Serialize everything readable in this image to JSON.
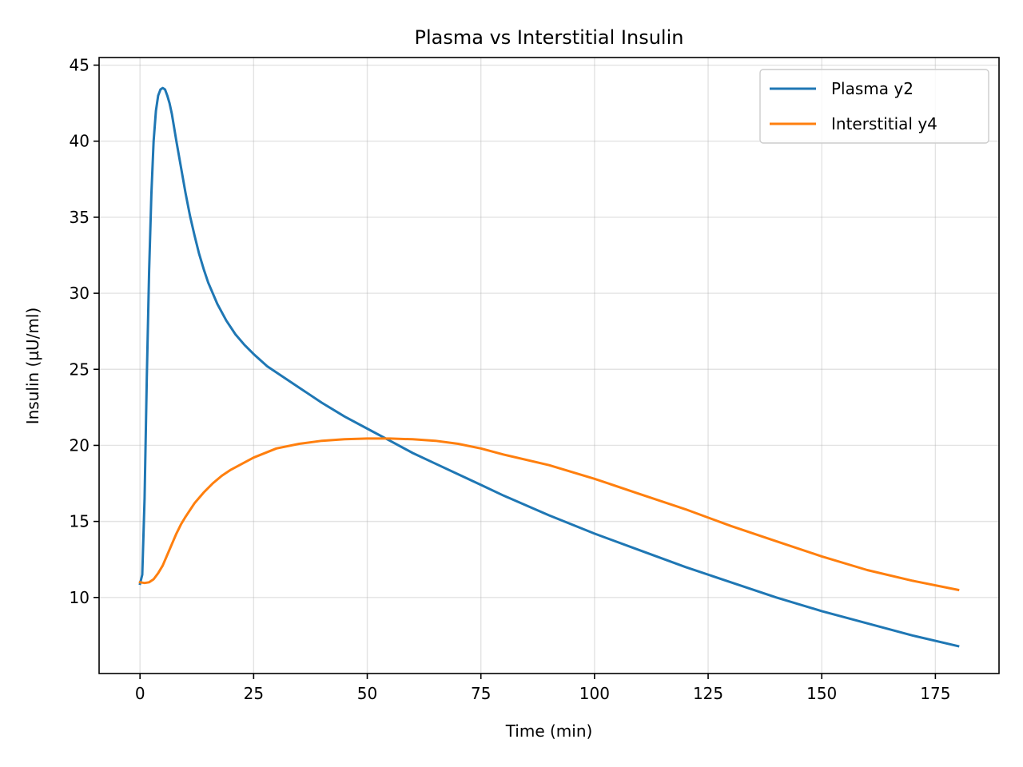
{
  "chart_data": {
    "type": "line",
    "title": "Plasma vs Interstitial Insulin",
    "xlabel": "Time (min)",
    "ylabel": "Insulin (µU/ml)",
    "xlim": [
      -9,
      189
    ],
    "ylim": [
      5,
      45.5
    ],
    "xticks": [
      0,
      25,
      50,
      75,
      100,
      125,
      150,
      175
    ],
    "yticks": [
      10,
      15,
      20,
      25,
      30,
      35,
      40,
      45
    ],
    "grid": true,
    "legend_position": "top-right",
    "series": [
      {
        "name": "Plasma y2",
        "color": "#1f77b4",
        "x": [
          0,
          0.5,
          1,
          1.5,
          2,
          2.5,
          3,
          3.5,
          4,
          4.5,
          5,
          5.5,
          6,
          6.5,
          7,
          8,
          9,
          10,
          11,
          12,
          13,
          14,
          15,
          17,
          19,
          21,
          23,
          25,
          28,
          30,
          35,
          40,
          45,
          50,
          55,
          60,
          65,
          70,
          75,
          80,
          90,
          100,
          110,
          120,
          130,
          140,
          150,
          160,
          170,
          180
        ],
        "y": [
          10.9,
          11.5,
          16.5,
          24.5,
          31.5,
          36.5,
          40.0,
          42.0,
          43.0,
          43.4,
          43.5,
          43.4,
          43.0,
          42.5,
          41.8,
          40.0,
          38.3,
          36.6,
          35.1,
          33.8,
          32.6,
          31.6,
          30.7,
          29.3,
          28.2,
          27.3,
          26.6,
          26.0,
          25.2,
          24.8,
          23.8,
          22.8,
          21.9,
          21.1,
          20.3,
          19.5,
          18.8,
          18.1,
          17.4,
          16.7,
          15.4,
          14.2,
          13.1,
          12.0,
          11.0,
          10.0,
          9.1,
          8.3,
          7.5,
          6.8
        ]
      },
      {
        "name": "Interstitial y4",
        "color": "#ff7f0e",
        "x": [
          0,
          1,
          2,
          3,
          4,
          5,
          6,
          7,
          8,
          9,
          10,
          12,
          14,
          16,
          18,
          20,
          25,
          30,
          35,
          40,
          45,
          50,
          55,
          60,
          65,
          70,
          75,
          80,
          90,
          100,
          110,
          120,
          130,
          140,
          150,
          160,
          170,
          180
        ],
        "y": [
          11.0,
          10.95,
          11.0,
          11.2,
          11.6,
          12.1,
          12.8,
          13.5,
          14.2,
          14.8,
          15.3,
          16.2,
          16.9,
          17.5,
          18.0,
          18.4,
          19.2,
          19.8,
          20.1,
          20.3,
          20.4,
          20.45,
          20.45,
          20.4,
          20.3,
          20.1,
          19.8,
          19.4,
          18.7,
          17.8,
          16.8,
          15.8,
          14.7,
          13.7,
          12.7,
          11.8,
          11.1,
          10.5
        ]
      }
    ]
  }
}
